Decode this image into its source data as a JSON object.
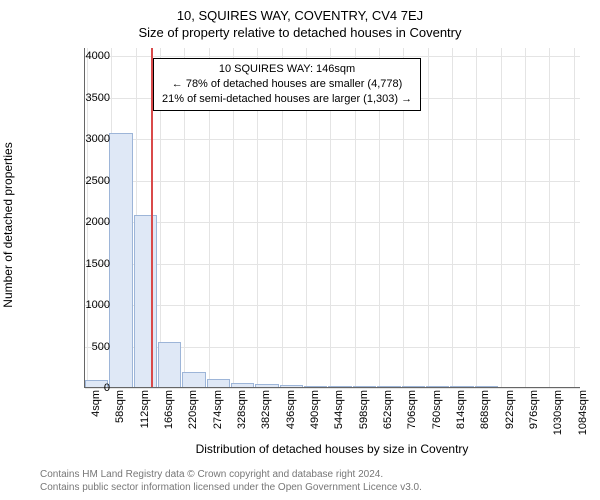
{
  "title_main": "10, SQUIRES WAY, COVENTRY, CV4 7EJ",
  "title_sub": "Size of property relative to detached houses in Coventry",
  "yaxis_label": "Number of detached properties",
  "xaxis_label": "Distribution of detached houses by size in Coventry",
  "footer_line1": "Contains HM Land Registry data © Crown copyright and database right 2024.",
  "footer_line2": "Contains public sector information licensed under the Open Government Licence v3.0.",
  "chart": {
    "type": "histogram",
    "background_color": "#ffffff",
    "grid_color": "#e4e4e4",
    "axis_color": "#666666",
    "bar_fill": "#dfe8f6",
    "bar_stroke": "#9db5d8",
    "reference_line_color": "#d94a4a",
    "reference_value_sqm": 146,
    "x_domain": [
      0,
      1100
    ],
    "y_domain": [
      0,
      4100
    ],
    "y_ticks": [
      0,
      500,
      1000,
      1500,
      2000,
      2500,
      3000,
      3500,
      4000
    ],
    "x_tick_step": 54,
    "x_tick_start": 4,
    "x_tick_unit": "sqm",
    "bins": [
      {
        "start": 0,
        "end": 54,
        "count": 90
      },
      {
        "start": 54,
        "end": 108,
        "count": 3060
      },
      {
        "start": 108,
        "end": 162,
        "count": 2070
      },
      {
        "start": 162,
        "end": 216,
        "count": 540
      },
      {
        "start": 216,
        "end": 270,
        "count": 180
      },
      {
        "start": 270,
        "end": 324,
        "count": 95
      },
      {
        "start": 324,
        "end": 378,
        "count": 50
      },
      {
        "start": 378,
        "end": 432,
        "count": 35
      },
      {
        "start": 432,
        "end": 486,
        "count": 25
      },
      {
        "start": 486,
        "end": 540,
        "count": 12
      },
      {
        "start": 540,
        "end": 594,
        "count": 8
      },
      {
        "start": 594,
        "end": 648,
        "count": 5
      },
      {
        "start": 648,
        "end": 702,
        "count": 3
      },
      {
        "start": 702,
        "end": 756,
        "count": 2
      },
      {
        "start": 756,
        "end": 810,
        "count": 2
      },
      {
        "start": 810,
        "end": 864,
        "count": 1
      },
      {
        "start": 864,
        "end": 918,
        "count": 1
      },
      {
        "start": 918,
        "end": 972,
        "count": 0
      },
      {
        "start": 972,
        "end": 1026,
        "count": 0
      },
      {
        "start": 1026,
        "end": 1080,
        "count": 0
      }
    ],
    "annotation": {
      "line1": "10 SQUIRES WAY: 146sqm",
      "line2": "← 78% of detached houses are smaller (4,778)",
      "line3": "21% of semi-detached houses are larger (1,303) →",
      "box_border": "#000000",
      "box_bg": "#ffffff",
      "fontsize": 11
    },
    "title_fontsize": 13,
    "axis_label_fontsize": 12,
    "tick_fontsize": 11
  }
}
